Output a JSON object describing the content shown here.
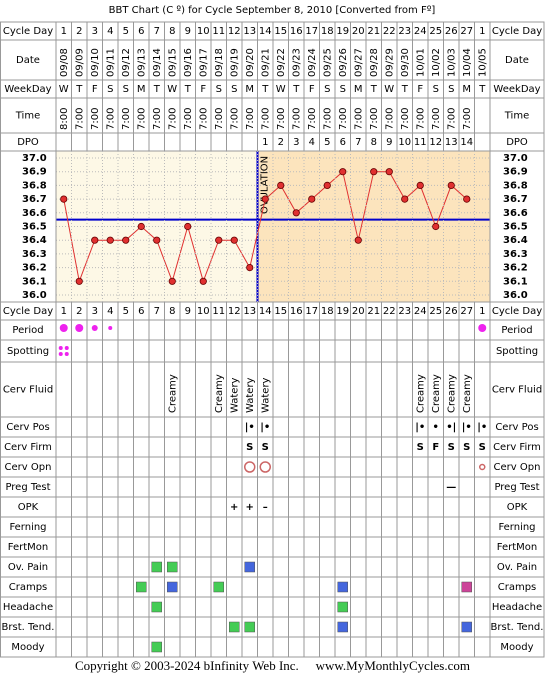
{
  "title": "BBT Chart (C º) for Cycle September 8, 2010  [Converted from Fº]",
  "labels": {
    "cycle_day": "Cycle Day",
    "date": "Date",
    "weekday": "WeekDay",
    "time": "Time",
    "dpo": "DPO"
  },
  "cycle_days": [
    1,
    2,
    3,
    4,
    5,
    6,
    7,
    8,
    9,
    10,
    11,
    12,
    13,
    14,
    15,
    16,
    17,
    18,
    19,
    20,
    21,
    22,
    23,
    24,
    25,
    26,
    27,
    1
  ],
  "weekdays": [
    "W",
    "T",
    "F",
    "S",
    "S",
    "M",
    "T",
    "W",
    "T",
    "F",
    "S",
    "S",
    "M",
    "T",
    "W",
    "T",
    "F",
    "S",
    "S",
    "M",
    "T",
    "W",
    "T",
    "F",
    "S",
    "S",
    "M",
    "T"
  ],
  "times": [
    "8:00",
    "7:00",
    "7:00",
    "7:00",
    "7:00",
    "7:00",
    "7:00",
    "7:00",
    "7:00",
    "7:00",
    "7:00",
    "7:00",
    "7:00",
    "7:00",
    "7:00",
    "7:00",
    "7:00",
    "7:00",
    "7:00",
    "7:00",
    "7:00",
    "7:00",
    "7:00",
    "7:00",
    "7:00",
    "7:00",
    "7:00",
    null
  ],
  "dpo": [
    null,
    null,
    null,
    null,
    null,
    null,
    null,
    null,
    null,
    null,
    null,
    null,
    null,
    1,
    2,
    3,
    4,
    5,
    6,
    7,
    8,
    9,
    10,
    11,
    12,
    13,
    14,
    null
  ],
  "chart_data": {
    "type": "line",
    "categories": [
      "09/08",
      "09/09",
      "09/10",
      "09/11",
      "09/12",
      "09/13",
      "09/14",
      "09/15",
      "09/16",
      "09/17",
      "09/18",
      "09/19",
      "09/20",
      "09/21",
      "09/22",
      "09/23",
      "09/24",
      "09/25",
      "09/26",
      "09/27",
      "09/28",
      "09/29",
      "09/30",
      "10/01",
      "10/02",
      "10/03",
      "10/04",
      "10/05"
    ],
    "series": [
      {
        "color": "#e03030",
        "values": [
          36.7,
          36.1,
          36.4,
          36.4,
          36.4,
          36.5,
          36.4,
          36.1,
          36.5,
          36.1,
          36.4,
          36.4,
          36.2,
          36.7,
          36.8,
          36.6,
          36.7,
          36.8,
          36.9,
          36.4,
          36.9,
          36.9,
          36.7,
          36.8,
          36.5,
          36.8,
          36.7,
          null
        ]
      }
    ],
    "ylim": [
      36.0,
      37.0
    ],
    "yticks": [
      {
        "value": 37,
        "label": "37.0"
      },
      36.9,
      36.8,
      36.7,
      36.6,
      36.5,
      36.4,
      36.3,
      36.2,
      36.1,
      {
        "value": 36,
        "label": "36.0"
      }
    ],
    "coverline": 36.55,
    "ovulation": {
      "label": "OVULATION",
      "day": 13
    },
    "grid": true
  },
  "rows": [
    {
      "label": "Period",
      "type": "dots",
      "color": "#ee22ee",
      "values": [
        3,
        3,
        2,
        1,
        null,
        null,
        null,
        null,
        null,
        null,
        null,
        null,
        null,
        null,
        null,
        null,
        null,
        null,
        null,
        null,
        null,
        null,
        null,
        null,
        null,
        null,
        null,
        3
      ]
    },
    {
      "label": "Spotting",
      "type": "spots",
      "color": "#ee22ee",
      "values": [
        1,
        null,
        null,
        null,
        null,
        null,
        null,
        null,
        null,
        null,
        null,
        null,
        null,
        null,
        null,
        null,
        null,
        null,
        null,
        null,
        null,
        null,
        null,
        null,
        null,
        null,
        null,
        null
      ]
    },
    {
      "label": "Cerv Fluid",
      "type": "vtext",
      "color": "#000000",
      "values": [
        null,
        null,
        null,
        null,
        null,
        null,
        null,
        "Creamy",
        null,
        null,
        "Creamy",
        "Watery",
        "Watery",
        "Watery",
        null,
        null,
        null,
        null,
        null,
        null,
        null,
        null,
        null,
        "Creamy",
        "Creamy",
        "Creamy",
        "Creamy",
        null
      ]
    },
    {
      "label": "Cerv Pos",
      "type": "text",
      "color": "#8866bb",
      "values": [
        null,
        null,
        null,
        null,
        null,
        null,
        null,
        null,
        null,
        null,
        null,
        null,
        "|•",
        "|•",
        null,
        null,
        null,
        null,
        null,
        null,
        null,
        null,
        null,
        "|•",
        "•",
        "•|",
        "|•",
        "|•"
      ]
    },
    {
      "label": "Cerv Firm",
      "type": "text",
      "color": "#8866bb",
      "values": [
        null,
        null,
        null,
        null,
        null,
        null,
        null,
        null,
        null,
        null,
        null,
        null,
        "S",
        "S",
        null,
        null,
        null,
        null,
        null,
        null,
        null,
        null,
        null,
        "S",
        "F",
        "S",
        "S",
        "S"
      ]
    },
    {
      "label": "Cerv Opn",
      "type": "circles",
      "color": "#cc6666",
      "values": [
        null,
        null,
        null,
        null,
        null,
        null,
        null,
        null,
        null,
        null,
        null,
        null,
        2,
        2,
        null,
        null,
        null,
        null,
        null,
        null,
        null,
        null,
        null,
        null,
        null,
        null,
        null,
        1
      ]
    },
    {
      "label": "Preg Test",
      "type": "text",
      "color": "#3344cc",
      "values": [
        null,
        null,
        null,
        null,
        null,
        null,
        null,
        null,
        null,
        null,
        null,
        null,
        null,
        null,
        null,
        null,
        null,
        null,
        null,
        null,
        null,
        null,
        null,
        null,
        null,
        "—",
        null,
        null
      ]
    },
    {
      "label": "OPK",
      "type": "text",
      "color": "#6644cc",
      "values": [
        null,
        null,
        null,
        null,
        null,
        null,
        null,
        null,
        null,
        null,
        null,
        "+",
        "+",
        "–",
        null,
        null,
        null,
        null,
        null,
        null,
        null,
        null,
        null,
        null,
        null,
        null,
        null,
        null
      ]
    },
    {
      "label": "Ferning",
      "type": "squares",
      "values": [
        null,
        null,
        null,
        null,
        null,
        null,
        null,
        null,
        null,
        null,
        null,
        null,
        null,
        null,
        null,
        null,
        null,
        null,
        null,
        null,
        null,
        null,
        null,
        null,
        null,
        null,
        null,
        null
      ]
    },
    {
      "label": "FertMon",
      "type": "squares",
      "values": [
        null,
        null,
        null,
        null,
        null,
        null,
        null,
        null,
        null,
        null,
        null,
        null,
        null,
        null,
        null,
        null,
        null,
        null,
        null,
        null,
        null,
        null,
        null,
        null,
        null,
        null,
        null,
        null
      ]
    },
    {
      "label": "Ov. Pain",
      "type": "squares",
      "values": [
        null,
        null,
        null,
        null,
        null,
        null,
        "#44cc55",
        "#44cc55",
        null,
        null,
        null,
        null,
        "#4466dd",
        null,
        null,
        null,
        null,
        null,
        null,
        null,
        null,
        null,
        null,
        null,
        null,
        null,
        null,
        null
      ]
    },
    {
      "label": "Cramps",
      "type": "squares",
      "values": [
        null,
        null,
        null,
        null,
        null,
        "#44cc55",
        null,
        "#4466dd",
        null,
        null,
        "#44cc55",
        null,
        null,
        null,
        null,
        null,
        null,
        null,
        "#4466dd",
        null,
        null,
        null,
        null,
        null,
        null,
        null,
        "#cc4499",
        null
      ]
    },
    {
      "label": "Headache",
      "type": "squares",
      "values": [
        null,
        null,
        null,
        null,
        null,
        null,
        "#44cc55",
        null,
        null,
        null,
        null,
        null,
        null,
        null,
        null,
        null,
        null,
        null,
        "#44cc55",
        null,
        null,
        null,
        null,
        null,
        null,
        null,
        null,
        null
      ]
    },
    {
      "label": "Brst. Tend.",
      "type": "squares",
      "values": [
        null,
        null,
        null,
        null,
        null,
        null,
        null,
        null,
        null,
        null,
        null,
        "#44cc55",
        "#44cc55",
        null,
        null,
        null,
        null,
        null,
        "#4466dd",
        null,
        null,
        null,
        null,
        null,
        null,
        null,
        "#4466dd",
        null
      ]
    },
    {
      "label": "Moody",
      "type": "squares",
      "values": [
        null,
        null,
        null,
        null,
        null,
        null,
        "#44cc55",
        null,
        null,
        null,
        null,
        null,
        null,
        null,
        null,
        null,
        null,
        null,
        null,
        null,
        null,
        null,
        null,
        null,
        null,
        null,
        null,
        null
      ]
    }
  ],
  "footer": {
    "copyright": "Copyright © 2003-2024 bInfinity Web Inc.",
    "site": "www.MyMonthlyCycles.com"
  }
}
